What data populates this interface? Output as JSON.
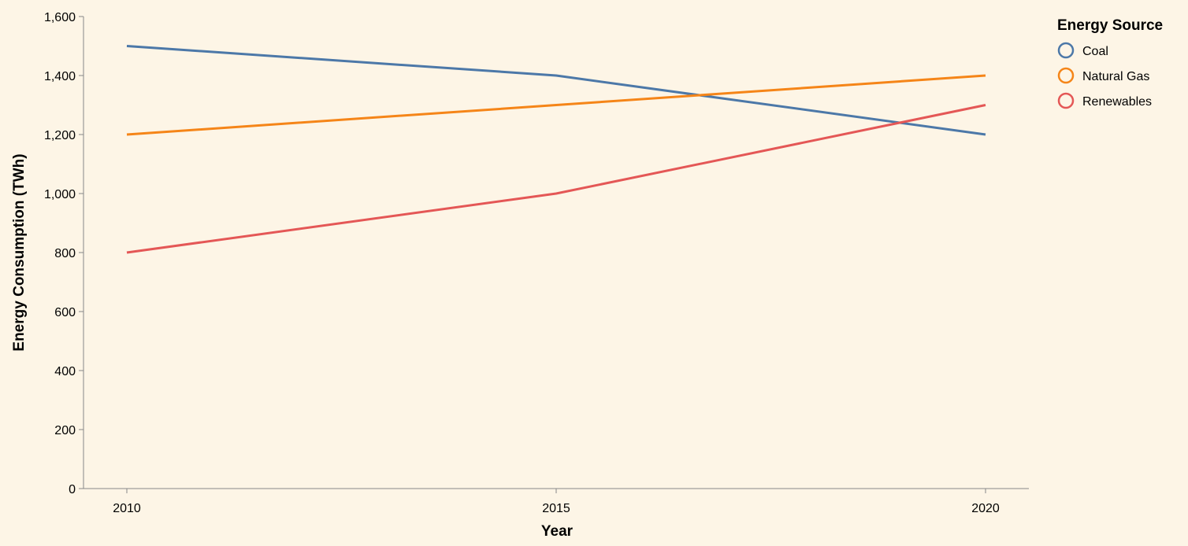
{
  "chart_data": {
    "type": "line",
    "title": "",
    "xlabel": "Year",
    "ylabel": "Energy Consumption (TWh)",
    "x": [
      2010,
      2015,
      2020
    ],
    "x_tick_labels": [
      "2010",
      "2015",
      "2020"
    ],
    "ylim": [
      0,
      1600
    ],
    "y_ticks": [
      0,
      200,
      400,
      600,
      800,
      1000,
      1200,
      1400,
      1600
    ],
    "y_tick_labels": [
      "0",
      "200",
      "400",
      "600",
      "800",
      "1,000",
      "1,200",
      "1,400",
      "1,600"
    ],
    "grid": false,
    "legend": {
      "title": "Energy Source",
      "placement": "top-right"
    },
    "series": [
      {
        "name": "Coal",
        "color": "#4c78a8",
        "values": [
          1500,
          1400,
          1200
        ]
      },
      {
        "name": "Natural Gas",
        "color": "#f58518",
        "values": [
          1200,
          1300,
          1400
        ]
      },
      {
        "name": "Renewables",
        "color": "#e45756",
        "values": [
          800,
          1000,
          1300
        ]
      }
    ]
  }
}
